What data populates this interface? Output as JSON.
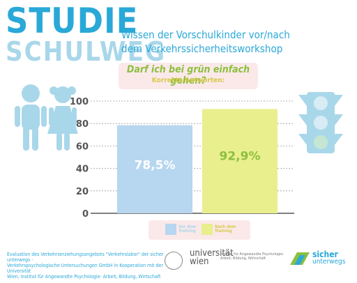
{
  "brand": {
    "line1": "STUDIE",
    "line2": "SCHULWEG"
  },
  "subtitle": {
    "line1": "Wissen der Vorschulkinder vor/nach",
    "line2": "dem Verkehrssicherheitsworkshop"
  },
  "question": "Darf ich bei grün einfach gehen?",
  "answers_label": "Korrekte Antworten:",
  "chart_data": {
    "type": "bar",
    "categories": [
      "Vor dem Training",
      "Nach dem Training"
    ],
    "values": [
      78.5,
      92.9
    ],
    "value_labels": [
      "78,5%",
      "92,9%"
    ],
    "colors": [
      "#b7d6ef",
      "#e9ef8c"
    ],
    "ylim": [
      0,
      100
    ],
    "yticks": [
      0,
      20,
      40,
      60,
      80,
      100
    ],
    "grid": true,
    "legend": [
      "Vor dem Training",
      "Nach dem Training"
    ],
    "legend_placement": "bottom"
  },
  "legend": {
    "item1_line1": "Vor dem",
    "item1_line2": "Training",
    "item2_line1": "Nach dem",
    "item2_line2": "Training"
  },
  "footer": {
    "line1": "Evaluation des Verkehrserziehungsangebots \"Verkehrslabor\" der sicher unterwegs -",
    "line2": "Verkehrspsychologische Untersuchungen GmbH in Kooperation mit der Universität",
    "line3": "Wien, Institut für Angewandte Psychologie: Arbeit, Bildung, Wirtschaft"
  },
  "university": {
    "line1": "universität",
    "line2": "wien"
  },
  "institute": {
    "line1": "Institut für Angewandte Psychologie:",
    "line2": "Arbeit, Bildung, Wirtschaft"
  },
  "partner": {
    "line1": "sicher",
    "line2": "unterwegs"
  },
  "colors": {
    "accent": "#2aa8d8",
    "accent_light": "#a9d7ea",
    "figures": "#a9d7ea",
    "traffic_light": "#a9d7ea"
  }
}
